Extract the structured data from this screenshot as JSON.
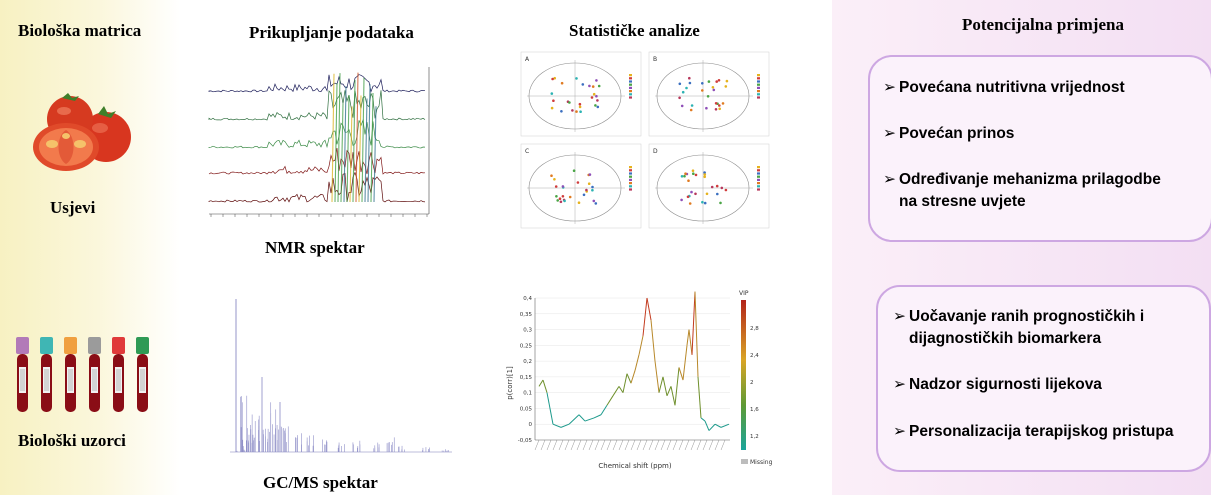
{
  "headers": {
    "biological_matrix": "Biološka matrica",
    "data_collection": "Prikupljanje podataka",
    "statistical_analysis": "Statističke analize",
    "potential_application": "Potencijalna primjena"
  },
  "labels": {
    "crops": "Usjevi",
    "biological_samples": "Biološki uzorci",
    "nmr_spectrum": "NMR spektar",
    "gcms_spectrum": "GC/MS spektar"
  },
  "box_top": {
    "items": [
      "Povećana nutritivna vrijednost",
      "Povećan prinos",
      "Određivanje mehanizma prilagodbe",
      "na stresne uvjete"
    ]
  },
  "box_bottom": {
    "items": [
      "Uočavanje ranih prognostičkih i",
      "dijagnostičkih biomarkera",
      "Nadzor sigurnosti lijekova",
      "Personalizacija terapijskog pristupa"
    ]
  },
  "pca_panels": [
    "A",
    "B",
    "C",
    "D"
  ],
  "loading_plot": {
    "xlabel": "Chemical shift (ppm)",
    "ylabel": "p(corr)[1]",
    "yticks": [
      "0,4",
      "0,35",
      "0,3",
      "0,25",
      "0,2",
      "0,15",
      "0,1",
      "0,05",
      "0",
      "-0,05"
    ],
    "colorbar_title": "VIP",
    "colorbar_ticks": [
      "2,8",
      "2,4",
      "2",
      "1,6",
      "1,2"
    ],
    "missing_label": "Missing"
  },
  "tube_colors": [
    "#b27ab8",
    "#3fb6b4",
    "#f0a040",
    "#9b9b9b",
    "#e03a3a",
    "#2f9a55"
  ],
  "accent": "#cda7e2"
}
